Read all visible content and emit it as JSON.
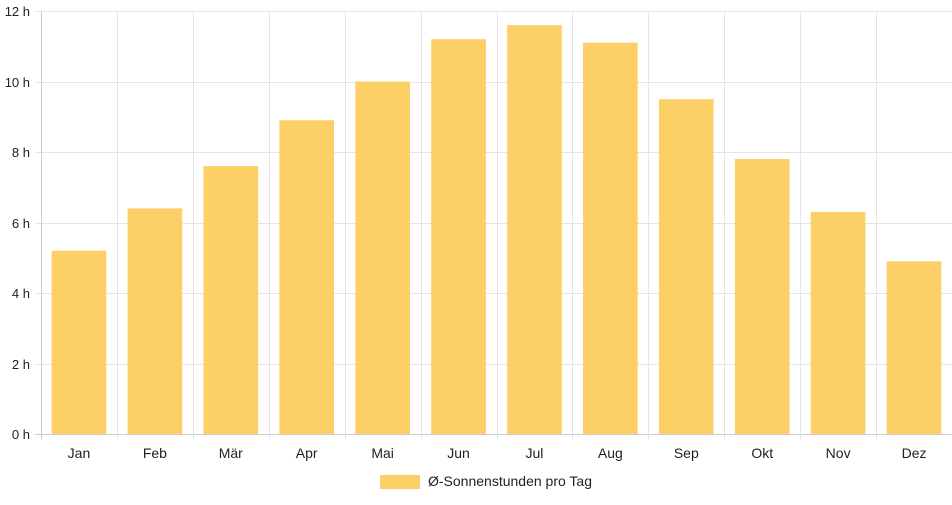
{
  "chart_data": {
    "type": "bar",
    "categories": [
      "Jan",
      "Feb",
      "Mär",
      "Apr",
      "Mai",
      "Jun",
      "Jul",
      "Aug",
      "Sep",
      "Okt",
      "Nov",
      "Dez"
    ],
    "series": [
      {
        "name": "Ø-Sonnenstunden pro Tag",
        "values": [
          5.2,
          6.4,
          7.6,
          8.9,
          10.0,
          11.2,
          11.6,
          11.1,
          9.5,
          7.8,
          6.3,
          4.9
        ]
      }
    ],
    "y_ticks": [
      "0 h",
      "2 h",
      "4 h",
      "6 h",
      "8 h",
      "10 h",
      "12 h"
    ],
    "ylim": [
      0,
      12
    ],
    "grid": true,
    "legend_position": "bottom",
    "colors": {
      "bar": "#fdd067",
      "grid": "#e5e5e5",
      "axis": "#cccccc",
      "text": "#222222"
    }
  }
}
